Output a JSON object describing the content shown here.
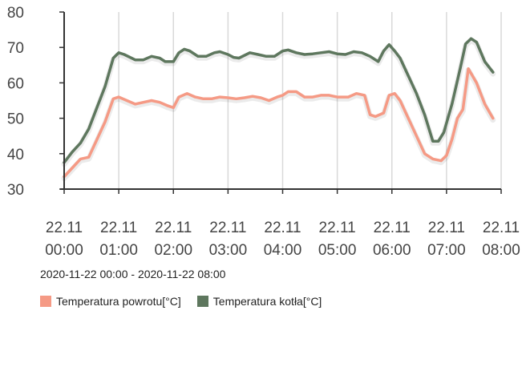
{
  "chart_data": {
    "type": "line",
    "ylim": [
      30,
      80
    ],
    "yticks": [
      30,
      40,
      50,
      60,
      70,
      80
    ],
    "xlim_hours": [
      0,
      8
    ],
    "xticks": [
      {
        "h": 0,
        "line1": "22.11",
        "line2": "00:00"
      },
      {
        "h": 1,
        "line1": "22.11",
        "line2": "01:00"
      },
      {
        "h": 2,
        "line1": "22.11",
        "line2": "02:00"
      },
      {
        "h": 3,
        "line1": "22.11",
        "line2": "03:00"
      },
      {
        "h": 4,
        "line1": "22.11",
        "line2": "04:00"
      },
      {
        "h": 5,
        "line1": "22.11",
        "line2": "05:00"
      },
      {
        "h": 6,
        "line1": "22.11",
        "line2": "06:00"
      },
      {
        "h": 7,
        "line1": "22.11",
        "line2": "07:00"
      },
      {
        "h": 8,
        "line1": "22.11",
        "line2": "08:00"
      }
    ],
    "grid": "vertical",
    "range_label": "2020-11-22 00:00 - 2020-11-22 08:00",
    "legend_position": "bottom-left",
    "series": [
      {
        "name": "Temperatura powrotu[°C]",
        "color": "#f59a85",
        "points": [
          [
            0,
            33.5
          ],
          [
            0.15,
            36
          ],
          [
            0.3,
            38.5
          ],
          [
            0.45,
            39
          ],
          [
            0.6,
            44
          ],
          [
            0.75,
            49
          ],
          [
            0.9,
            55.5
          ],
          [
            1.0,
            56
          ],
          [
            1.15,
            55
          ],
          [
            1.3,
            54
          ],
          [
            1.45,
            54.5
          ],
          [
            1.6,
            55
          ],
          [
            1.75,
            54.5
          ],
          [
            1.9,
            53.5
          ],
          [
            2.0,
            53
          ],
          [
            2.1,
            56
          ],
          [
            2.25,
            57
          ],
          [
            2.4,
            56
          ],
          [
            2.55,
            55.5
          ],
          [
            2.7,
            55.5
          ],
          [
            2.85,
            56
          ],
          [
            3.0,
            55.8
          ],
          [
            3.15,
            55.5
          ],
          [
            3.3,
            55.8
          ],
          [
            3.45,
            56.2
          ],
          [
            3.6,
            55.8
          ],
          [
            3.75,
            55
          ],
          [
            3.9,
            56
          ],
          [
            4.0,
            56.5
          ],
          [
            4.1,
            57.5
          ],
          [
            4.25,
            57.5
          ],
          [
            4.4,
            56
          ],
          [
            4.55,
            56
          ],
          [
            4.7,
            56.5
          ],
          [
            4.85,
            56.5
          ],
          [
            5.0,
            56
          ],
          [
            5.1,
            56
          ],
          [
            5.2,
            56
          ],
          [
            5.35,
            57
          ],
          [
            5.5,
            56.5
          ],
          [
            5.6,
            51
          ],
          [
            5.7,
            50.5
          ],
          [
            5.85,
            51.5
          ],
          [
            5.95,
            56.5
          ],
          [
            6.05,
            57
          ],
          [
            6.15,
            55
          ],
          [
            6.3,
            50
          ],
          [
            6.45,
            45
          ],
          [
            6.6,
            40
          ],
          [
            6.75,
            38.5
          ],
          [
            6.9,
            38
          ],
          [
            7.0,
            39.5
          ],
          [
            7.1,
            44
          ],
          [
            7.2,
            50
          ],
          [
            7.3,
            52.5
          ],
          [
            7.4,
            64
          ],
          [
            7.55,
            60
          ],
          [
            7.7,
            54
          ],
          [
            7.85,
            50
          ]
        ]
      },
      {
        "name": "Temperatura kotła[°C]",
        "color": "#5e775e",
        "points": [
          [
            0,
            37.5
          ],
          [
            0.15,
            40.5
          ],
          [
            0.3,
            43
          ],
          [
            0.45,
            47
          ],
          [
            0.6,
            53
          ],
          [
            0.75,
            59
          ],
          [
            0.9,
            67
          ],
          [
            1.0,
            68.5
          ],
          [
            1.1,
            68
          ],
          [
            1.3,
            66.5
          ],
          [
            1.45,
            66.5
          ],
          [
            1.6,
            67.5
          ],
          [
            1.75,
            67
          ],
          [
            1.85,
            66
          ],
          [
            2.0,
            66
          ],
          [
            2.1,
            68.5
          ],
          [
            2.2,
            69.5
          ],
          [
            2.3,
            69
          ],
          [
            2.45,
            67.5
          ],
          [
            2.6,
            67.5
          ],
          [
            2.75,
            68.5
          ],
          [
            2.85,
            68.8
          ],
          [
            3.0,
            68
          ],
          [
            3.1,
            67.2
          ],
          [
            3.2,
            67
          ],
          [
            3.4,
            68.5
          ],
          [
            3.55,
            68
          ],
          [
            3.7,
            67.5
          ],
          [
            3.85,
            67.5
          ],
          [
            4.0,
            69
          ],
          [
            4.1,
            69.3
          ],
          [
            4.25,
            68.5
          ],
          [
            4.4,
            68
          ],
          [
            4.55,
            68.2
          ],
          [
            4.7,
            68.5
          ],
          [
            4.85,
            68.8
          ],
          [
            5.0,
            68.2
          ],
          [
            5.15,
            68
          ],
          [
            5.3,
            68.8
          ],
          [
            5.45,
            68.5
          ],
          [
            5.6,
            67.5
          ],
          [
            5.75,
            66
          ],
          [
            5.85,
            69
          ],
          [
            5.95,
            70.8
          ],
          [
            6.05,
            69
          ],
          [
            6.15,
            67
          ],
          [
            6.3,
            62
          ],
          [
            6.45,
            57
          ],
          [
            6.6,
            51
          ],
          [
            6.75,
            43.5
          ],
          [
            6.85,
            43.5
          ],
          [
            6.95,
            46
          ],
          [
            7.1,
            54
          ],
          [
            7.25,
            64
          ],
          [
            7.35,
            71
          ],
          [
            7.45,
            72.5
          ],
          [
            7.55,
            71.5
          ],
          [
            7.7,
            66
          ],
          [
            7.85,
            63
          ]
        ]
      }
    ]
  }
}
